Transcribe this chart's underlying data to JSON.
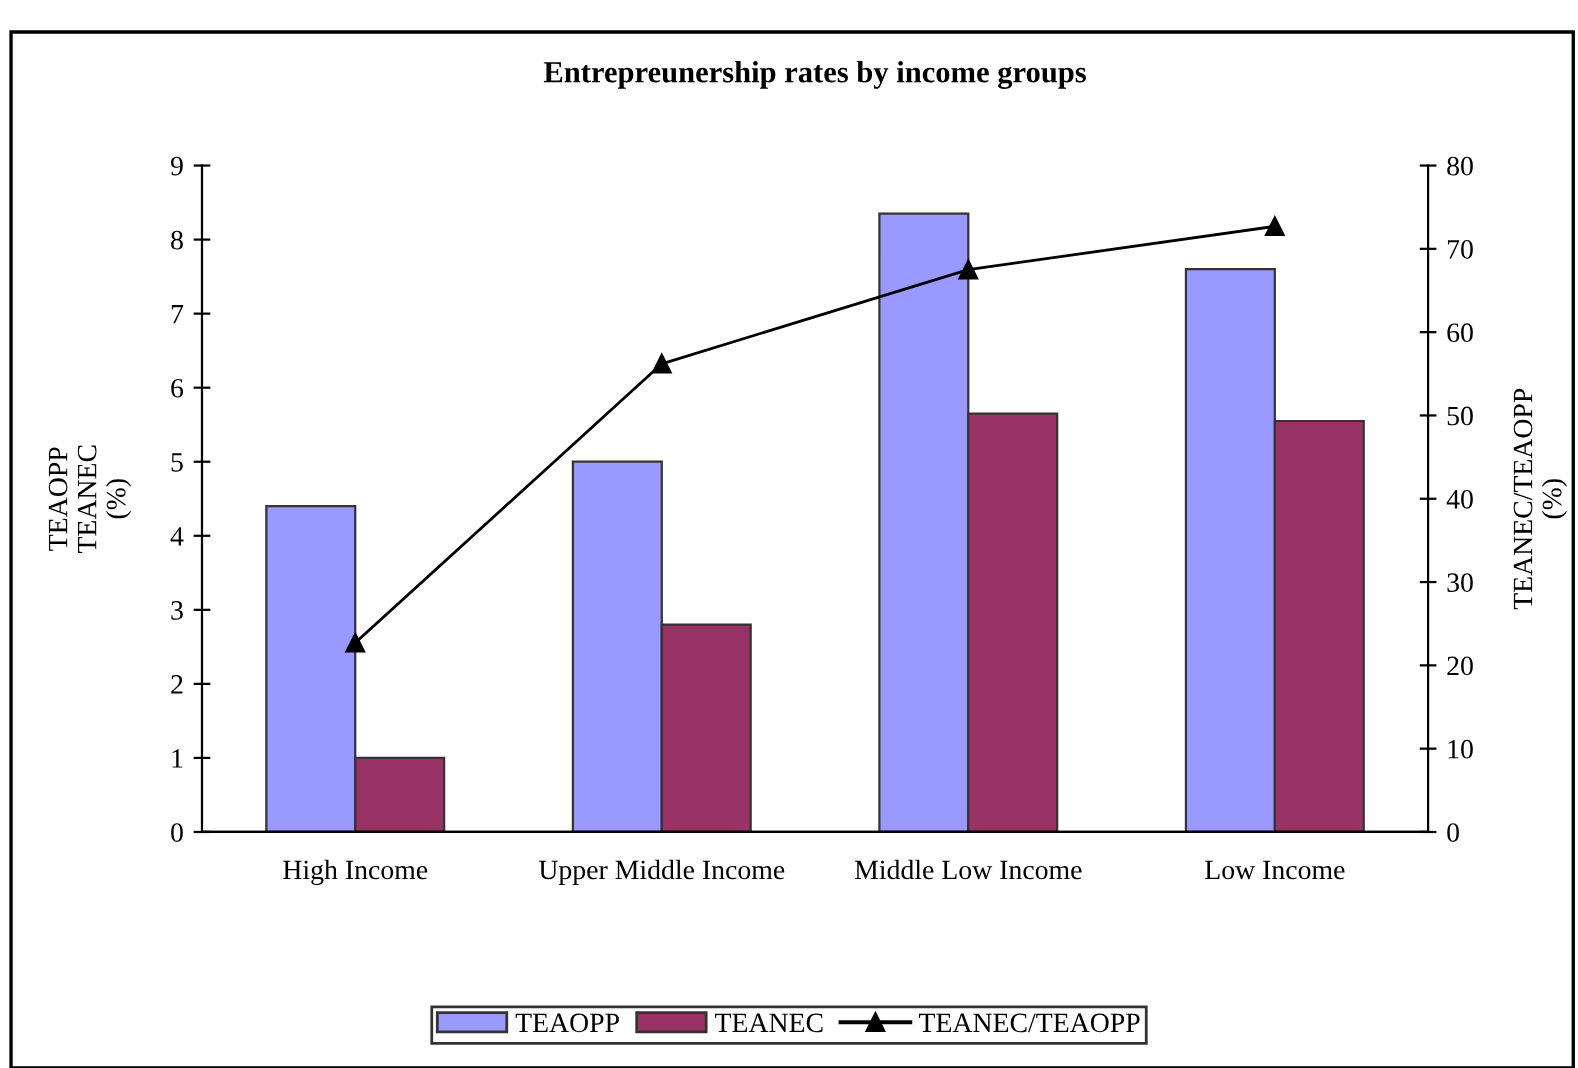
{
  "chart_data": {
    "type": "bar",
    "title": "Entrepreunership rates by income groups",
    "ylabel": "TEAOPP\nTEANEC\n(%)",
    "y2label": "TEANEC/TEAOPP\n(%)",
    "categories": [
      "High Income",
      "Upper Middle Income",
      "Middle Low Income",
      "Low Income"
    ],
    "series": [
      {
        "name": "TEAOPP",
        "color": "#9999ff",
        "values": [
          4.4,
          5.0,
          8.35,
          7.6
        ]
      },
      {
        "name": "TEANEC",
        "color": "#993366",
        "values": [
          1.0,
          2.8,
          5.65,
          5.55
        ]
      },
      {
        "name": "TEANEC/TEAOPP",
        "type": "line",
        "axis": "y2",
        "color": "#000000",
        "marker": "triangle",
        "values": [
          22.7,
          56.2,
          67.5,
          72.7
        ]
      }
    ],
    "ylim": [
      0,
      9
    ],
    "yticks": [
      0,
      1,
      2,
      3,
      4,
      5,
      6,
      7,
      8,
      9
    ],
    "y2lim": [
      0,
      80
    ],
    "y2ticks": [
      0,
      10,
      20,
      30,
      40,
      50,
      60,
      70,
      80
    ],
    "grid": false,
    "legend": "bottom"
  }
}
